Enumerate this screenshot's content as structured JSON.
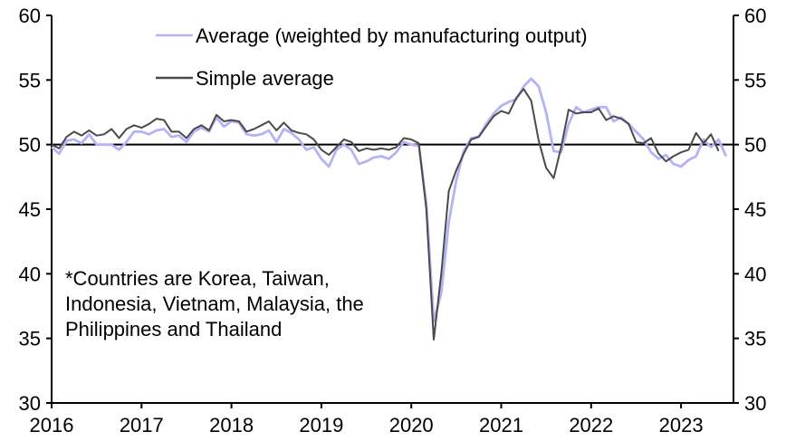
{
  "chart_data": {
    "type": "line",
    "title": "",
    "xlabel": "",
    "ylabel": "",
    "ylim": [
      30,
      60
    ],
    "y_ticks": [
      30,
      35,
      40,
      45,
      50,
      55,
      60
    ],
    "y_tick_labels": [
      "30",
      "35",
      "40",
      "45",
      "50",
      "55",
      "60"
    ],
    "x_range": [
      2016.0,
      2023.75
    ],
    "x_ticks": [
      2016,
      2017,
      2018,
      2019,
      2020,
      2021,
      2022,
      2023
    ],
    "x_tick_labels": [
      "2016",
      "2017",
      "2018",
      "2019",
      "2020",
      "2021",
      "2022",
      "2023"
    ],
    "reference_line": 50,
    "grid": false,
    "legend_position": "top",
    "start": "2016-01",
    "frequency": "monthly",
    "series": [
      {
        "name": "Average (weighted by manufacturing output)",
        "color": "#b3b3f5",
        "values": [
          49.8,
          49.3,
          50.3,
          50.4,
          50.1,
          50.8,
          50.0,
          50.0,
          50.0,
          49.6,
          50.2,
          51.0,
          51.0,
          50.8,
          51.1,
          51.2,
          50.6,
          50.7,
          50.2,
          51.0,
          51.3,
          51.0,
          52.1,
          51.4,
          51.8,
          51.7,
          50.8,
          50.7,
          50.8,
          51.1,
          50.2,
          51.2,
          50.9,
          50.4,
          49.6,
          49.8,
          48.9,
          48.3,
          49.6,
          50.0,
          49.6,
          48.5,
          48.7,
          49.0,
          49.1,
          48.9,
          49.4,
          50.2,
          50.0,
          49.9,
          45.5,
          36.3,
          38.5,
          44.0,
          47.2,
          49.5,
          50.5,
          50.6,
          51.6,
          52.4,
          53.0,
          53.3,
          53.5,
          54.5,
          55.1,
          54.5,
          52.5,
          49.5,
          49.4,
          51.6,
          52.9,
          52.5,
          52.7,
          52.9,
          52.9,
          51.8,
          52.1,
          51.6,
          51.0,
          50.4,
          49.4,
          48.9,
          49.2,
          48.5,
          48.3,
          48.8,
          49.1,
          50.4,
          49.8,
          50.4,
          49.1
        ]
      },
      {
        "name": "Simple average",
        "color": "#4a4a4a",
        "values": [
          50.0,
          49.7,
          50.6,
          51.0,
          50.7,
          51.1,
          50.7,
          50.8,
          51.2,
          50.5,
          51.2,
          51.5,
          51.3,
          51.6,
          52.0,
          51.9,
          51.0,
          51.0,
          50.5,
          51.2,
          51.5,
          51.1,
          52.3,
          51.8,
          51.9,
          51.8,
          51.0,
          51.2,
          51.5,
          51.8,
          51.1,
          51.7,
          51.1,
          50.9,
          50.8,
          50.4,
          49.6,
          49.2,
          49.8,
          50.4,
          50.2,
          49.5,
          49.7,
          49.6,
          49.7,
          49.6,
          49.8,
          50.5,
          50.4,
          50.1,
          45.0,
          34.9,
          40.0,
          46.4,
          48.0,
          49.3,
          50.4,
          50.6,
          51.4,
          52.2,
          52.6,
          52.4,
          53.6,
          54.3,
          53.4,
          50.3,
          48.2,
          47.4,
          49.8,
          52.7,
          52.4,
          52.5,
          52.5,
          52.8,
          51.9,
          52.2,
          52.0,
          51.6,
          50.2,
          50.1,
          50.5,
          49.3,
          48.7,
          49.1,
          49.4,
          49.6,
          50.9,
          50.1,
          50.8,
          49.5
        ]
      }
    ],
    "annotation": "*Countries are Korea, Taiwan, Indonesia, Vietnam, Malaysia, the Philippines and Thailand",
    "annotation_lines": [
      "*Countries are Korea, Taiwan,",
      "Indonesia, Vietnam, Malaysia, the",
      "Philippines and Thailand"
    ],
    "axis_color": "#000000"
  }
}
